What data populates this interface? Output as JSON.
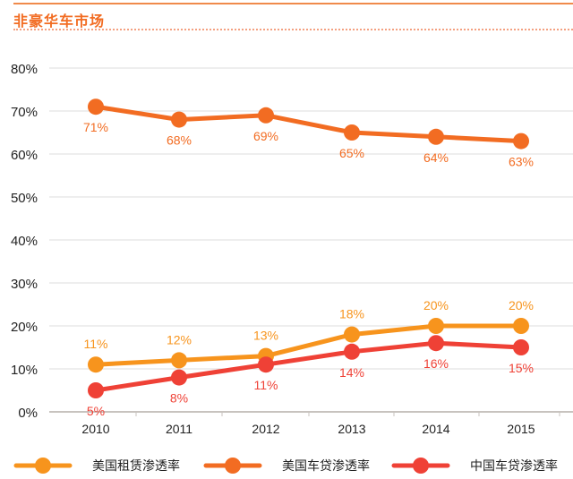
{
  "header": {
    "title": "非豪华车市场"
  },
  "chart_data": {
    "type": "line",
    "categories": [
      "2010",
      "2011",
      "2012",
      "2013",
      "2014",
      "2015"
    ],
    "ylim": [
      0,
      80
    ],
    "yticks": [
      "0%",
      "10%",
      "20%",
      "30%",
      "40%",
      "50%",
      "60%",
      "70%",
      "80%"
    ],
    "grid": true,
    "legend_position": "bottom",
    "series": [
      {
        "name": "美国租赁渗透率",
        "color": "#f7941d",
        "values": [
          11,
          12,
          13,
          18,
          20,
          20
        ],
        "labels": [
          "11%",
          "12%",
          "13%",
          "18%",
          "20%",
          "20%"
        ],
        "label_pos": "above"
      },
      {
        "name": "美国车贷渗透率",
        "color": "#f26c22",
        "values": [
          71,
          68,
          69,
          65,
          64,
          63
        ],
        "labels": [
          "71%",
          "68%",
          "69%",
          "65%",
          "64%",
          "63%"
        ],
        "label_pos": "below"
      },
      {
        "name": "中国车贷渗透率",
        "color": "#ef4136",
        "values": [
          5,
          8,
          11,
          14,
          16,
          15
        ],
        "labels": [
          "5%",
          "8%",
          "11%",
          "14%",
          "16%",
          "15%"
        ],
        "label_pos": "below"
      }
    ]
  }
}
